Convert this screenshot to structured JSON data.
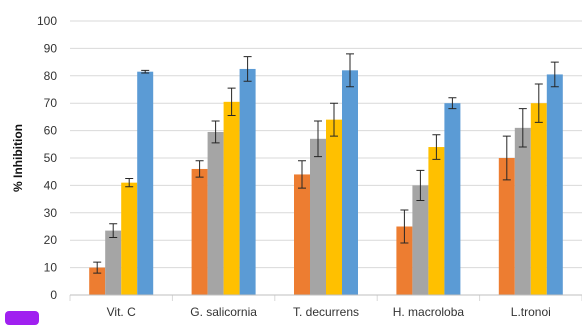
{
  "chart_data": {
    "type": "bar",
    "categories": [
      "Vit. C",
      "G. salicornia",
      "T. decurrens",
      "H. macroloba",
      "L.tronoi"
    ],
    "series": [
      {
        "color": "#ED7D31",
        "values": [
          10,
          46,
          44,
          25,
          50
        ],
        "errors": [
          2,
          3,
          5,
          6,
          8
        ]
      },
      {
        "color": "#A5A5A5",
        "values": [
          23.5,
          59.5,
          57,
          40,
          61
        ],
        "errors": [
          2.5,
          4,
          6.5,
          5.5,
          7
        ]
      },
      {
        "color": "#FFC000",
        "values": [
          41,
          70.5,
          64,
          54,
          70
        ],
        "errors": [
          1.5,
          5,
          6,
          4.5,
          7
        ]
      },
      {
        "color": "#5B9BD5",
        "values": [
          81.5,
          82.5,
          82,
          70,
          80.5
        ],
        "errors": [
          0.5,
          4.5,
          6,
          2,
          4.5
        ]
      }
    ],
    "ylabel": "% Inhibition",
    "ylim": [
      0,
      100
    ],
    "yticks": [
      0,
      10,
      20,
      30,
      40,
      50,
      60,
      70,
      80,
      90,
      100
    ],
    "grid": true,
    "legend": "none"
  },
  "badge_color": "#A020F0"
}
